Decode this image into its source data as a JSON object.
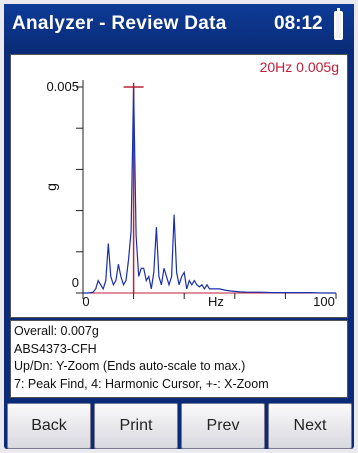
{
  "header": {
    "title": "Analyzer - Review Data",
    "time": "08:12"
  },
  "chart": {
    "cursor_readout": "20Hz  0.005g"
  },
  "chart_data": {
    "type": "line",
    "xlabel": "Hz",
    "ylabel": "g",
    "xlim": [
      0,
      100
    ],
    "ylim": [
      0,
      0.005
    ],
    "x_tick_labels": [
      "0",
      "100"
    ],
    "y_tick_labels": [
      "0.005",
      "0"
    ],
    "cursor": {
      "x": 20,
      "y": 0.005
    },
    "series": [
      {
        "color": "#1a2faa",
        "x": [
          0,
          2,
          4,
          5,
          6,
          7,
          8,
          9,
          10,
          11,
          12,
          13,
          14,
          15,
          16,
          17,
          18,
          19,
          20,
          21,
          22,
          23,
          24,
          25,
          26,
          27,
          28,
          29,
          30,
          31,
          32,
          33,
          34,
          35,
          36,
          37,
          38,
          39,
          40,
          41,
          42,
          43,
          44,
          45,
          46,
          47,
          48,
          49,
          50,
          52,
          54,
          56,
          58,
          60,
          62,
          65,
          70,
          75,
          80,
          85,
          90,
          95,
          100
        ],
        "y": [
          0,
          0,
          2e-05,
          0.0001,
          0.0003,
          0.0002,
          0.0001,
          0.0003,
          0.0012,
          0.0004,
          0.0002,
          0.0003,
          0.0007,
          0.0004,
          0.0002,
          0.0003,
          0.0008,
          0.0015,
          0.005,
          0.0014,
          0.0004,
          0.0006,
          0.0006,
          0.0003,
          0.0004,
          0.0001,
          0.0005,
          0.0016,
          0.0004,
          0.0002,
          0.0006,
          0.0004,
          0.0002,
          0.0004,
          0.0019,
          0.0005,
          0.0002,
          0.0004,
          0.0005,
          0.0001,
          0.0003,
          0.0002,
          0.0003,
          0.0002,
          0.00015,
          0.0002,
          0.0001,
          0.0002,
          0.0001,
          0.0001,
          0.0001,
          7e-05,
          5e-05,
          4e-05,
          3e-05,
          2e-05,
          2e-05,
          1e-05,
          1e-05,
          1e-05,
          1e-05,
          0,
          0
        ]
      }
    ]
  },
  "info": {
    "overall": "Overall: 0.007g",
    "id": "ABS4373-CFH",
    "hint1": "Up/Dn: Y-Zoom (Ends auto-scale to max.)",
    "hint2": "7: Peak Find, 4: Harmonic Cursor, +-: X-Zoom"
  },
  "buttons": {
    "back": "Back",
    "print": "Print",
    "prev": "Prev",
    "next": "Next"
  },
  "colors": {
    "title_bar": "#0a2c78",
    "trace": "#1a2faa",
    "cursor": "#c0203a"
  }
}
